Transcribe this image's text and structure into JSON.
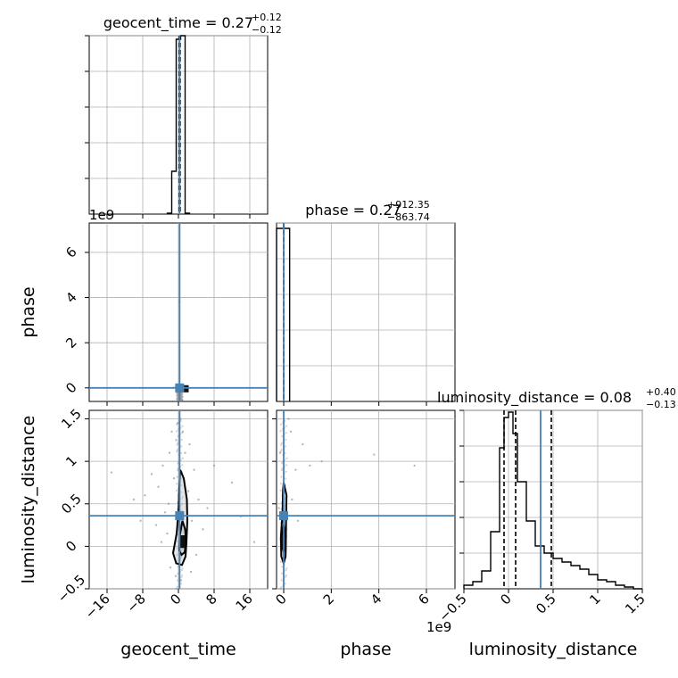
{
  "colors": {
    "truth": "#4682b4",
    "hist": "#000000",
    "grid": "#b0b0b0",
    "scatter": "#7f7f7f"
  },
  "offset_texts": {
    "phase_y": "1e9",
    "phase_x": "1e9"
  },
  "chart_data": [
    {
      "id": "hist_geocent_time",
      "type": "bar",
      "title": {
        "main": "geocent_time = 0.27",
        "plus": "+0.12",
        "minus": "−0.12"
      },
      "xlim": [
        -20,
        20
      ],
      "ylim": [
        0,
        1
      ],
      "bin_edges": [
        -2.5,
        -1.5,
        -0.5,
        0.5,
        1.5,
        2.5
      ],
      "values": [
        0.005,
        0.24,
        0.98,
        1.0,
        0.005
      ],
      "quantiles": [
        0.15,
        0.27,
        0.39
      ],
      "truth": 0.27,
      "yticks": [
        0.2,
        0.4,
        0.6,
        0.8,
        1.0
      ],
      "xticks": [
        -16,
        -8,
        0,
        8,
        16
      ],
      "grid": true
    },
    {
      "id": "hist_phase",
      "type": "bar",
      "title": {
        "main": "phase = 0.27",
        "plus": "+912.35",
        "minus": "−863.74"
      },
      "xlim": [
        -0.3,
        7.2
      ],
      "ylim": [
        0,
        1
      ],
      "bin_edges": [
        -0.3,
        0.05,
        0.25
      ],
      "values": [
        0.97,
        0.97
      ],
      "quantiles": [
        -9e-07,
        2.7e-10,
        9e-07
      ],
      "truth": 2.7e-10,
      "yticks": [
        0.2,
        0.4,
        0.6,
        0.8,
        1.0
      ],
      "xticks": [
        0,
        2,
        4,
        6
      ],
      "grid": true
    },
    {
      "id": "hist_luminosity_distance",
      "type": "bar",
      "title": {
        "main": "luminosity_distance = 0.08",
        "plus": "+0.40",
        "minus": "−0.13"
      },
      "xlim": [
        -0.5,
        1.5
      ],
      "ylim": [
        0,
        1
      ],
      "bin_edges": [
        -0.5,
        -0.4,
        -0.3,
        -0.2,
        -0.1,
        -0.05,
        0.0,
        0.05,
        0.1,
        0.2,
        0.3,
        0.4,
        0.5,
        0.6,
        0.7,
        0.8,
        0.9,
        1.0,
        1.1,
        1.2,
        1.3,
        1.4,
        1.5
      ],
      "values": [
        0.02,
        0.04,
        0.1,
        0.32,
        0.79,
        0.96,
        0.99,
        0.87,
        0.6,
        0.38,
        0.24,
        0.2,
        0.17,
        0.15,
        0.13,
        0.11,
        0.08,
        0.05,
        0.04,
        0.02,
        0.01,
        0.0
      ],
      "quantiles": [
        -0.05,
        0.08,
        0.48
      ],
      "truth": 0.36,
      "yticks": [
        0.2,
        0.4,
        0.6,
        0.8,
        1.0
      ],
      "xticks": [
        -0.5,
        0.0,
        0.5,
        1.0,
        1.5
      ],
      "grid": true
    },
    {
      "id": "contour_phase_vs_geocent_time",
      "type": "scatter",
      "xlim": [
        -20,
        20
      ],
      "ylim": [
        -0.6,
        7.3
      ],
      "yticks": [
        0,
        2,
        4,
        6
      ],
      "ylabel": "phase",
      "truth_x": 0.27,
      "truth_y": 0.0,
      "points": [
        [
          0.2,
          3.8
        ],
        [
          1.0,
          0.02
        ],
        [
          -0.5,
          -0.02
        ],
        [
          0.5,
          0.0
        ],
        [
          1.5,
          0.03
        ],
        [
          -1.0,
          0.01
        ],
        [
          2.0,
          -0.02
        ],
        [
          0.8,
          0.05
        ]
      ],
      "grid": true
    },
    {
      "id": "contour_luminosity_distance_vs_geocent_time",
      "type": "scatter",
      "xlim": [
        -20,
        20
      ],
      "ylim": [
        -0.5,
        1.6
      ],
      "xticks": [
        -16,
        -8,
        0,
        8,
        16
      ],
      "yticks": [
        -0.5,
        0.0,
        0.5,
        1.0,
        1.5
      ],
      "xlabel": "geocent_time",
      "ylabel": "luminosity_distance",
      "truth_x": 0.27,
      "truth_y": 0.36,
      "contours": [
        [
          [
            0.4,
            0.9
          ],
          [
            1.2,
            0.8
          ],
          [
            1.9,
            0.55
          ],
          [
            2.0,
            0.3
          ],
          [
            1.8,
            0.05
          ],
          [
            1.6,
            -0.12
          ],
          [
            0.8,
            -0.22
          ],
          [
            -0.5,
            -0.2
          ],
          [
            -1.2,
            -0.08
          ],
          [
            -0.4,
            0.15
          ],
          [
            0.0,
            0.4
          ],
          [
            0.2,
            0.7
          ]
        ],
        [
          [
            0.9,
            0.3
          ],
          [
            1.5,
            0.2
          ],
          [
            1.7,
            0.05
          ],
          [
            1.4,
            -0.07
          ],
          [
            0.7,
            -0.1
          ],
          [
            0.2,
            -0.05
          ],
          [
            0.3,
            0.12
          ]
        ]
      ],
      "core_box": [
        0.4,
        1.5,
        -0.02,
        0.13
      ],
      "points": [
        [
          -3.5,
          0.95
        ],
        [
          -2.0,
          1.1
        ],
        [
          -4.5,
          0.7
        ],
        [
          -6.0,
          0.85
        ],
        [
          -7.5,
          0.6
        ],
        [
          -3.0,
          0.4
        ],
        [
          -5.0,
          0.25
        ],
        [
          -2.5,
          0.15
        ],
        [
          2.5,
          1.2
        ],
        [
          3.5,
          0.9
        ],
        [
          4.5,
          0.55
        ],
        [
          5.5,
          0.2
        ],
        [
          -15.0,
          0.87
        ],
        [
          12.0,
          0.75
        ],
        [
          14.0,
          0.35
        ],
        [
          17.0,
          0.05
        ],
        [
          -1.5,
          1.35
        ],
        [
          0.5,
          1.5
        ],
        [
          -0.5,
          1.25
        ],
        [
          1.5,
          1.1
        ],
        [
          -1.0,
          0.8
        ],
        [
          2.2,
          0.65
        ],
        [
          -2.2,
          0.5
        ],
        [
          3.0,
          0.3
        ],
        [
          -3.8,
          0.05
        ],
        [
          4.0,
          -0.1
        ],
        [
          -1.8,
          -0.25
        ],
        [
          2.8,
          -0.3
        ],
        [
          0.6,
          -0.4
        ],
        [
          -0.6,
          -0.35
        ],
        [
          6.5,
          0.45
        ],
        [
          -8.5,
          0.3
        ],
        [
          -10.0,
          0.55
        ],
        [
          8.0,
          0.95
        ],
        [
          1.0,
          1.35
        ],
        [
          -0.2,
          1.45
        ]
      ],
      "grid": true
    },
    {
      "id": "contour_luminosity_distance_vs_phase",
      "type": "scatter",
      "xlim": [
        -0.3,
        7.2
      ],
      "ylim": [
        -0.5,
        1.6
      ],
      "xticks": [
        0,
        2,
        4,
        6
      ],
      "xlabel": "phase",
      "truth_x": 2.7e-10,
      "truth_y": 0.36,
      "contours": [
        [
          [
            0.0,
            0.75
          ],
          [
            0.12,
            0.6
          ],
          [
            0.1,
            0.3
          ],
          [
            0.09,
            0.0
          ],
          [
            0.08,
            -0.12
          ],
          [
            0.0,
            -0.2
          ],
          [
            -0.1,
            -0.12
          ],
          [
            -0.12,
            0.1
          ],
          [
            -0.05,
            0.4
          ],
          [
            -0.03,
            0.65
          ]
        ],
        [
          [
            0.0,
            0.25
          ],
          [
            0.06,
            0.15
          ],
          [
            0.06,
            0.0
          ],
          [
            0.0,
            -0.07
          ],
          [
            -0.06,
            0.0
          ],
          [
            -0.05,
            0.15
          ]
        ]
      ],
      "core_box": [
        -0.08,
        0.02,
        -0.02,
        0.13
      ],
      "points": [
        [
          0.3,
          1.35
        ],
        [
          0.8,
          1.2
        ],
        [
          0.5,
          0.9
        ],
        [
          1.1,
          0.95
        ],
        [
          1.6,
          1.0
        ],
        [
          3.8,
          1.08
        ],
        [
          5.5,
          0.95
        ],
        [
          0.2,
          1.5
        ],
        [
          -0.15,
          1.1
        ],
        [
          0.35,
          0.55
        ],
        [
          0.6,
          0.3
        ],
        [
          -0.2,
          0.45
        ]
      ],
      "grid": true
    }
  ]
}
